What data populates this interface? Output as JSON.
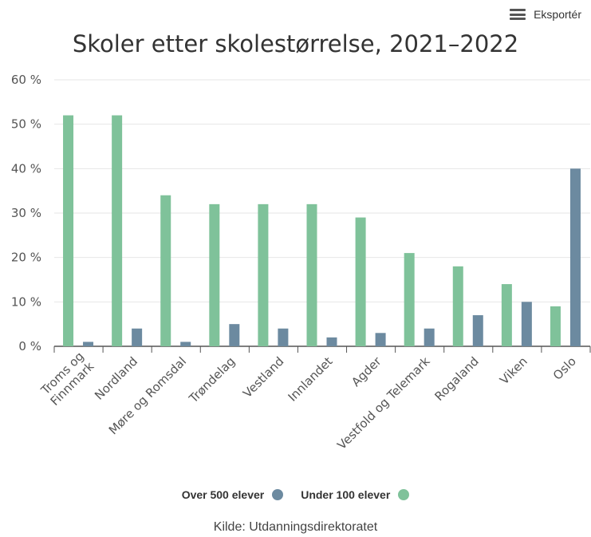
{
  "toolbar": {
    "export_label": "Eksportér",
    "export_icon": "menu-icon"
  },
  "chart_data": {
    "type": "bar",
    "title": "Skoler etter skolestørrelse, 2021–2022",
    "categories": [
      "Troms og Finnmark",
      "Nordland",
      "Møre og Romsdal",
      "Trøndelag",
      "Vestland",
      "Innlandet",
      "Agder",
      "Vestfold og Telemark",
      "Rogaland",
      "Viken",
      "Oslo"
    ],
    "category_lines": [
      [
        "Troms og",
        "Finnmark"
      ],
      [
        "Nordland"
      ],
      [
        "Møre og Romsdal"
      ],
      [
        "Trøndelag"
      ],
      [
        "Vestland"
      ],
      [
        "Innlandet"
      ],
      [
        "Agder"
      ],
      [
        "Vestfold og Telemark"
      ],
      [
        "Rogaland"
      ],
      [
        "Viken"
      ],
      [
        "Oslo"
      ]
    ],
    "series": [
      {
        "name": "Under 100 elever",
        "color": "#7fc29a",
        "values": [
          52,
          52,
          34,
          32,
          32,
          32,
          29,
          21,
          18,
          14,
          9
        ]
      },
      {
        "name": "Over 500 elever",
        "color": "#6c8aa0",
        "values": [
          1,
          4,
          1,
          5,
          4,
          2,
          3,
          4,
          7,
          10,
          40
        ]
      }
    ],
    "ylim": [
      0,
      60
    ],
    "yticks": [
      "0 %",
      "10 %",
      "20 %",
      "30 %",
      "40 %",
      "50 %",
      "60 %"
    ],
    "xlabel": "",
    "ylabel": "",
    "grid": true,
    "legend_position": "bottom"
  },
  "legend": [
    {
      "label": "Over 500 elever",
      "color": "#6c8aa0"
    },
    {
      "label": "Under 100 elever",
      "color": "#7fc29a"
    }
  ],
  "credit": "Kilde: Utdanningsdirektoratet"
}
